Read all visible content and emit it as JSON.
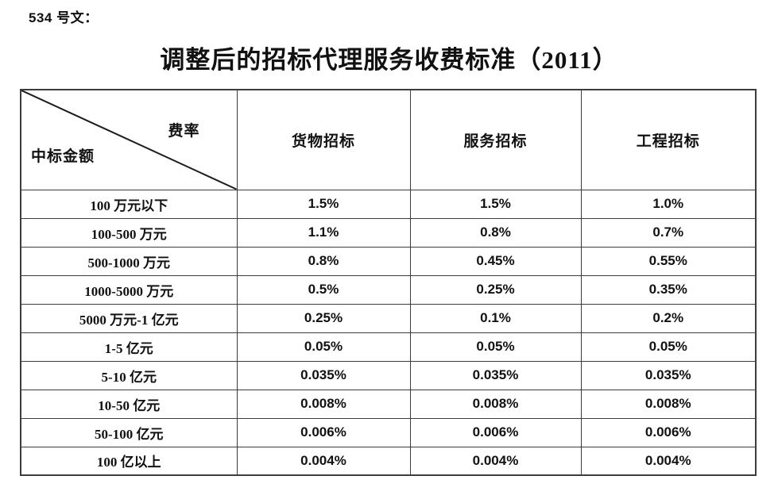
{
  "page": {
    "doc_label": "534 号文：",
    "title": "调整后的招标代理服务收费标准（2011）"
  },
  "table": {
    "corner": {
      "top_right": "费率",
      "bottom_left": "中标金额"
    },
    "columns": [
      "货物招标",
      "服务招标",
      "工程招标"
    ],
    "rows": [
      {
        "label": "100 万元以下",
        "values": [
          "1.5%",
          "1.5%",
          "1.0%"
        ]
      },
      {
        "label": "100-500 万元",
        "values": [
          "1.1%",
          "0.8%",
          "0.7%"
        ]
      },
      {
        "label": "500-1000 万元",
        "values": [
          "0.8%",
          "0.45%",
          "0.55%"
        ]
      },
      {
        "label": "1000-5000 万元",
        "values": [
          "0.5%",
          "0.25%",
          "0.35%"
        ]
      },
      {
        "label": "5000 万元-1 亿元",
        "values": [
          "0.25%",
          "0.1%",
          "0.2%"
        ]
      },
      {
        "label": "1-5 亿元",
        "values": [
          "0.05%",
          "0.05%",
          "0.05%"
        ]
      },
      {
        "label": "5-10 亿元",
        "values": [
          "0.035%",
          "0.035%",
          "0.035%"
        ]
      },
      {
        "label": "10-50 亿元",
        "values": [
          "0.008%",
          "0.008%",
          "0.008%"
        ]
      },
      {
        "label": "50-100 亿元",
        "values": [
          "0.006%",
          "0.006%",
          "0.006%"
        ]
      },
      {
        "label": "100 亿以上",
        "values": [
          "0.004%",
          "0.004%",
          "0.004%"
        ]
      }
    ],
    "colors": {
      "border": "#3c3c3c",
      "text": "#111111",
      "background": "#ffffff"
    }
  }
}
